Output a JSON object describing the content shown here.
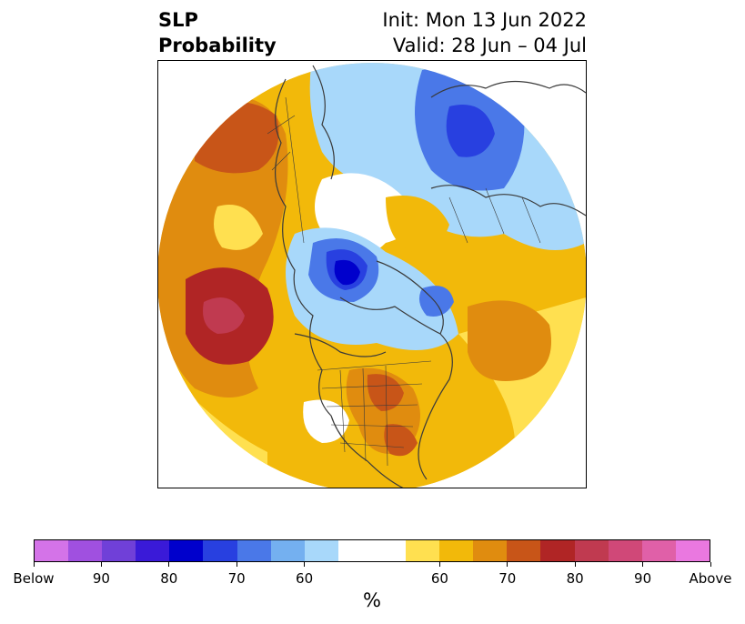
{
  "title": {
    "left_line1": "SLP",
    "left_line2": "Probability",
    "right_line1": "Init: Mon 13 Jun 2022",
    "right_line2": "Valid: 28 Jun – 04 Jul"
  },
  "map": {
    "projection": "north polar stereographic",
    "coastline_color": "#3a3a3a",
    "features": {
      "deep_below_over_baffin": "below normal, ~80-90% (Baffin Bay / Greenland region)",
      "below_over_siberia_arctic": "below normal, ~70-80%",
      "above_north_pacific": "above normal, ~80-90%",
      "above_north_atlantic": "above normal, ~65-70%",
      "above_eastern_us": "above normal, ~70-75%"
    }
  },
  "colorbar": {
    "colors": [
      "#d473e8",
      "#a050e0",
      "#7040d8",
      "#3a1ad8",
      "#0000cc",
      "#2840e0",
      "#4a78e8",
      "#74b0f0",
      "#a8d8fa",
      "#ffffff",
      "#ffe050",
      "#f2b90a",
      "#e08c0f",
      "#c85518",
      "#b02525",
      "#c03a50",
      "#d04878",
      "#e060a8",
      "#ea78e0"
    ],
    "tick_labels": [
      "Below",
      "90",
      "80",
      "70",
      "60",
      "60",
      "70",
      "80",
      "90",
      "Above"
    ],
    "units": "%"
  }
}
